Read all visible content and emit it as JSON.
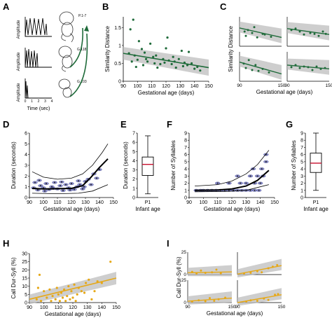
{
  "panel_letters": [
    "A",
    "B",
    "C",
    "D",
    "E",
    "F",
    "G",
    "H",
    "I"
  ],
  "colors": {
    "green": "#1f6b3a",
    "orange": "#e6a817",
    "band": "#bdbdbd",
    "navy": "#2b2f7a",
    "red": "#c8102e"
  },
  "panel_a": {
    "ylabel": "Amplitude",
    "xlabel": "Time (sec)",
    "ticks": [
      "0",
      "1",
      "2",
      "3",
      "4"
    ],
    "fetus_labels": [
      "P.1-7",
      "G.118",
      "G.103"
    ]
  },
  "chart_data": [
    {
      "id": "B",
      "type": "scatter",
      "xlabel": "Gestational age (days)",
      "ylabel": "Similarity Distance",
      "xlim": [
        90,
        150
      ],
      "ylim": [
        0,
        1.8
      ],
      "xticks": [
        90,
        100,
        110,
        120,
        130,
        140,
        150
      ],
      "yticks": [
        0,
        0.5,
        1,
        1.5
      ],
      "points": [
        [
          97,
          1.72
        ],
        [
          95,
          1.45
        ],
        [
          101,
          1.12
        ],
        [
          94,
          0.78
        ],
        [
          98,
          0.72
        ],
        [
          100,
          0.6
        ],
        [
          103,
          0.9
        ],
        [
          105,
          0.8
        ],
        [
          106,
          0.62
        ],
        [
          107,
          0.55
        ],
        [
          109,
          1.05
        ],
        [
          111,
          0.68
        ],
        [
          112,
          0.5
        ],
        [
          113,
          0.72
        ],
        [
          116,
          0.48
        ],
        [
          118,
          0.62
        ],
        [
          119,
          0.52
        ],
        [
          120,
          0.92
        ],
        [
          121,
          1.22
        ],
        [
          122,
          0.58
        ],
        [
          124,
          0.48
        ],
        [
          126,
          0.55
        ],
        [
          127,
          0.38
        ],
        [
          129,
          0.62
        ],
        [
          131,
          0.85
        ],
        [
          133,
          0.52
        ],
        [
          135,
          0.45
        ],
        [
          136,
          0.82
        ],
        [
          138,
          0.5
        ],
        [
          140,
          0.35
        ],
        [
          142,
          0.4
        ],
        [
          144,
          0.3
        ],
        [
          96,
          0.55
        ],
        [
          99,
          0.4
        ],
        [
          104,
          0.45
        ],
        [
          114,
          0.38
        ],
        [
          125,
          0.68
        ],
        [
          132,
          0.42
        ]
      ],
      "fit": [
        [
          90,
          0.78
        ],
        [
          150,
          0.38
        ]
      ]
    },
    {
      "id": "C",
      "type": "scatter",
      "xlabel": "Gestational age (days)",
      "ylabel": "Similarity Distance",
      "xticks": [
        90,
        150
      ],
      "subplots": [
        {
          "points": [
            [
              0.12,
              0.5
            ],
            [
              0.15,
              0.35
            ],
            [
              0.2,
              0.55
            ],
            [
              0.3,
              0.45
            ],
            [
              0.35,
              0.65
            ],
            [
              0.42,
              0.3
            ],
            [
              0.55,
              0.42
            ],
            [
              0.6,
              0.4
            ],
            [
              0.75,
              0.32
            ]
          ],
          "fit": [
            [
              0,
              0.62
            ],
            [
              1,
              0.3
            ]
          ]
        },
        {
          "points": [
            [
              0.1,
              0.55
            ],
            [
              0.2,
              0.6
            ],
            [
              0.3,
              0.5
            ],
            [
              0.4,
              0.4
            ],
            [
              0.55,
              0.45
            ],
            [
              0.65,
              0.42
            ],
            [
              0.75,
              0.35
            ],
            [
              0.85,
              0.5
            ],
            [
              0.92,
              0.42
            ]
          ],
          "fit": [
            [
              0,
              0.6
            ],
            [
              1,
              0.4
            ]
          ]
        },
        {
          "points": [
            [
              0.1,
              0.6
            ],
            [
              0.15,
              0.45
            ],
            [
              0.22,
              0.72
            ],
            [
              0.3,
              0.38
            ],
            [
              0.38,
              0.55
            ],
            [
              0.45,
              0.35
            ],
            [
              0.55,
              0.42
            ],
            [
              0.7,
              0.3
            ]
          ],
          "fit": [
            [
              0,
              0.65
            ],
            [
              1,
              0.25
            ]
          ]
        },
        {
          "points": [
            [
              0.1,
              0.48
            ],
            [
              0.2,
              0.55
            ],
            [
              0.3,
              0.45
            ],
            [
              0.4,
              0.5
            ],
            [
              0.5,
              0.48
            ],
            [
              0.6,
              0.38
            ],
            [
              0.7,
              0.5
            ],
            [
              0.8,
              0.42
            ],
            [
              0.9,
              0.45
            ]
          ],
          "fit": [
            [
              0,
              0.55
            ],
            [
              1,
              0.42
            ]
          ]
        }
      ]
    },
    {
      "id": "D",
      "type": "scatter",
      "xlabel": "Gestational age (days)",
      "ylabel": "Duration (seconds)",
      "xlim": [
        90,
        150
      ],
      "ylim": [
        0,
        6
      ],
      "xticks": [
        90,
        100,
        110,
        120,
        130,
        140,
        150
      ],
      "yticks": [
        0,
        1,
        2,
        3,
        4,
        5,
        6
      ],
      "mean_curve": [
        [
          92,
          0.85
        ],
        [
          100,
          0.8
        ],
        [
          110,
          0.82
        ],
        [
          120,
          0.85
        ],
        [
          128,
          1.1
        ],
        [
          134,
          1.9
        ],
        [
          140,
          2.8
        ],
        [
          146,
          3.6
        ]
      ],
      "upper_curve": [
        [
          92,
          2.4
        ],
        [
          100,
          1.9
        ],
        [
          110,
          1.7
        ],
        [
          120,
          1.8
        ],
        [
          128,
          2.2
        ],
        [
          135,
          3.0
        ],
        [
          142,
          4.2
        ],
        [
          146,
          5.0
        ]
      ],
      "lower_curve": [
        [
          92,
          0.4
        ],
        [
          110,
          0.35
        ],
        [
          125,
          0.4
        ],
        [
          135,
          0.6
        ],
        [
          146,
          1.2
        ]
      ],
      "points": [
        [
          94,
          1.4
        ],
        [
          96,
          0.7
        ],
        [
          98,
          1.1
        ],
        [
          100,
          0.9
        ],
        [
          102,
          1.3
        ],
        [
          104,
          0.75
        ],
        [
          106,
          1.0
        ],
        [
          108,
          1.4
        ],
        [
          110,
          0.8
        ],
        [
          112,
          1.1
        ],
        [
          114,
          0.65
        ],
        [
          116,
          1.2
        ],
        [
          118,
          0.9
        ],
        [
          120,
          1.3
        ],
        [
          122,
          0.75
        ],
        [
          124,
          1.0
        ],
        [
          126,
          1.2
        ],
        [
          128,
          0.8
        ],
        [
          130,
          1.5
        ],
        [
          132,
          1.7
        ],
        [
          134,
          1.2
        ],
        [
          136,
          2.2
        ],
        [
          138,
          1.8
        ],
        [
          140,
          2.6
        ],
        [
          93,
          0.9
        ],
        [
          97,
          1.6
        ],
        [
          101,
          0.6
        ],
        [
          107,
          0.85
        ],
        [
          113,
          1.45
        ],
        [
          119,
          0.7
        ],
        [
          125,
          1.55
        ],
        [
          129,
          1.0
        ]
      ]
    },
    {
      "id": "E",
      "type": "box",
      "ylabel": "Duration (seconds)",
      "xlabel": "Infant age",
      "category": "P1",
      "ylim": [
        0,
        7
      ],
      "yticks": [
        0,
        1,
        2,
        3,
        4,
        5,
        6,
        7
      ],
      "whisker_low": 0.4,
      "q1": 2.4,
      "median": 3.6,
      "q3": 4.4,
      "whisker_high": 6.7
    },
    {
      "id": "F",
      "type": "scatter",
      "xlabel": "Gestational age (days)",
      "ylabel": "Number of Syllables",
      "xlim": [
        90,
        150
      ],
      "ylim": [
        0,
        9
      ],
      "xticks": [
        90,
        100,
        110,
        120,
        130,
        140,
        150
      ],
      "yticks": [
        0,
        1,
        2,
        3,
        4,
        5,
        6,
        7,
        8,
        9
      ],
      "mean_curve": [
        [
          94,
          1.0
        ],
        [
          110,
          1.05
        ],
        [
          120,
          1.2
        ],
        [
          130,
          1.6
        ],
        [
          138,
          2.4
        ],
        [
          146,
          3.8
        ]
      ],
      "upper_curve": [
        [
          94,
          1.6
        ],
        [
          110,
          1.8
        ],
        [
          120,
          2.3
        ],
        [
          130,
          3.3
        ],
        [
          138,
          4.6
        ],
        [
          146,
          6.6
        ]
      ],
      "lower_curve": [
        [
          94,
          0.8
        ],
        [
          115,
          0.85
        ],
        [
          130,
          1.0
        ],
        [
          146,
          1.8
        ]
      ],
      "points": [
        [
          95,
          1
        ],
        [
          98,
          1
        ],
        [
          100,
          1
        ],
        [
          103,
          1
        ],
        [
          106,
          1
        ],
        [
          109,
          1
        ],
        [
          112,
          1
        ],
        [
          115,
          1
        ],
        [
          118,
          1
        ],
        [
          121,
          1
        ],
        [
          124,
          1
        ],
        [
          127,
          1
        ],
        [
          130,
          1
        ],
        [
          133,
          1
        ],
        [
          136,
          1
        ],
        [
          139,
          1
        ],
        [
          110,
          2
        ],
        [
          118,
          2
        ],
        [
          126,
          2
        ],
        [
          130,
          2
        ],
        [
          136,
          2
        ],
        [
          140,
          2
        ],
        [
          124,
          3
        ],
        [
          133,
          3
        ],
        [
          138,
          3
        ],
        [
          142,
          3
        ],
        [
          135,
          4
        ],
        [
          141,
          4
        ],
        [
          144,
          5
        ],
        [
          144,
          6
        ]
      ]
    },
    {
      "id": "G",
      "type": "box",
      "ylabel": "Number of Syllables",
      "xlabel": "Infant age",
      "category": "P1",
      "ylim": [
        0,
        9
      ],
      "yticks": [
        0,
        1,
        2,
        3,
        4,
        5,
        6,
        7,
        8,
        9
      ],
      "whisker_low": 1,
      "q1": 3.5,
      "median": 4.8,
      "q3": 6.2,
      "whisker_high": 9
    },
    {
      "id": "H",
      "type": "scatter",
      "xlabel": "Gestational age (days)",
      "ylabel": "Call Dur-Syll (%)",
      "xlim": [
        90,
        150
      ],
      "ylim": [
        0,
        30
      ],
      "xticks": [
        90,
        100,
        110,
        120,
        130,
        140,
        150
      ],
      "yticks": [
        0,
        5,
        10,
        15,
        20,
        25,
        30
      ],
      "points": [
        [
          95,
          2
        ],
        [
          96,
          9
        ],
        [
          97,
          17
        ],
        [
          98,
          1
        ],
        [
          100,
          7
        ],
        [
          102,
          3
        ],
        [
          104,
          8
        ],
        [
          105,
          1
        ],
        [
          106,
          4
        ],
        [
          108,
          2
        ],
        [
          109,
          9
        ],
        [
          110,
          5
        ],
        [
          111,
          1
        ],
        [
          112,
          6
        ],
        [
          113,
          3
        ],
        [
          114,
          8
        ],
        [
          115,
          1
        ],
        [
          116,
          4
        ],
        [
          117,
          10
        ],
        [
          118,
          2
        ],
        [
          119,
          7
        ],
        [
          120,
          3
        ],
        [
          121,
          11
        ],
        [
          122,
          1
        ],
        [
          123,
          5
        ],
        [
          124,
          9
        ],
        [
          126,
          7
        ],
        [
          128,
          6
        ],
        [
          129,
          12
        ],
        [
          131,
          14
        ],
        [
          133,
          2
        ],
        [
          135,
          7
        ],
        [
          137,
          13
        ],
        [
          140,
          12
        ],
        [
          146,
          25
        ]
      ],
      "fit": [
        [
          90,
          2
        ],
        [
          150,
          15
        ]
      ]
    },
    {
      "id": "I",
      "type": "scatter",
      "xlabel": "Gestational age (days)",
      "ylabel": "Call Dur-Syll (%)",
      "xticks": [
        90,
        150
      ],
      "yticks": [
        0,
        25
      ],
      "subplots": [
        {
          "points": [
            [
              0.1,
              0.12
            ],
            [
              0.2,
              0.05
            ],
            [
              0.3,
              0.18
            ],
            [
              0.4,
              0.08
            ],
            [
              0.55,
              0.1
            ],
            [
              0.65,
              0.22
            ],
            [
              0.75,
              0.06
            ]
          ],
          "fit": [
            [
              0,
              0.08
            ],
            [
              1,
              0.12
            ]
          ]
        },
        {
          "points": [
            [
              0.15,
              0.05
            ],
            [
              0.3,
              0.08
            ],
            [
              0.45,
              0.15
            ],
            [
              0.55,
              0.1
            ],
            [
              0.7,
              0.28
            ],
            [
              0.8,
              0.35
            ],
            [
              0.9,
              0.42
            ]
          ],
          "fit": [
            [
              0,
              0.02
            ],
            [
              1,
              0.4
            ]
          ]
        },
        {
          "points": [
            [
              0.1,
              0.05
            ],
            [
              0.25,
              0.1
            ],
            [
              0.4,
              0.06
            ],
            [
              0.5,
              0.2
            ],
            [
              0.6,
              0.08
            ],
            [
              0.7,
              0.15
            ],
            [
              0.85,
              0.22
            ]
          ],
          "fit": [
            [
              0,
              0.06
            ],
            [
              1,
              0.2
            ]
          ]
        },
        {
          "points": [
            [
              0.2,
              0.05
            ],
            [
              0.3,
              0.1
            ],
            [
              0.45,
              0.08
            ],
            [
              0.6,
              0.18
            ],
            [
              0.7,
              0.12
            ],
            [
              0.85,
              0.35
            ],
            [
              0.92,
              0.38
            ]
          ],
          "fit": [
            [
              0,
              0.0
            ],
            [
              1,
              0.35
            ]
          ]
        }
      ]
    }
  ]
}
